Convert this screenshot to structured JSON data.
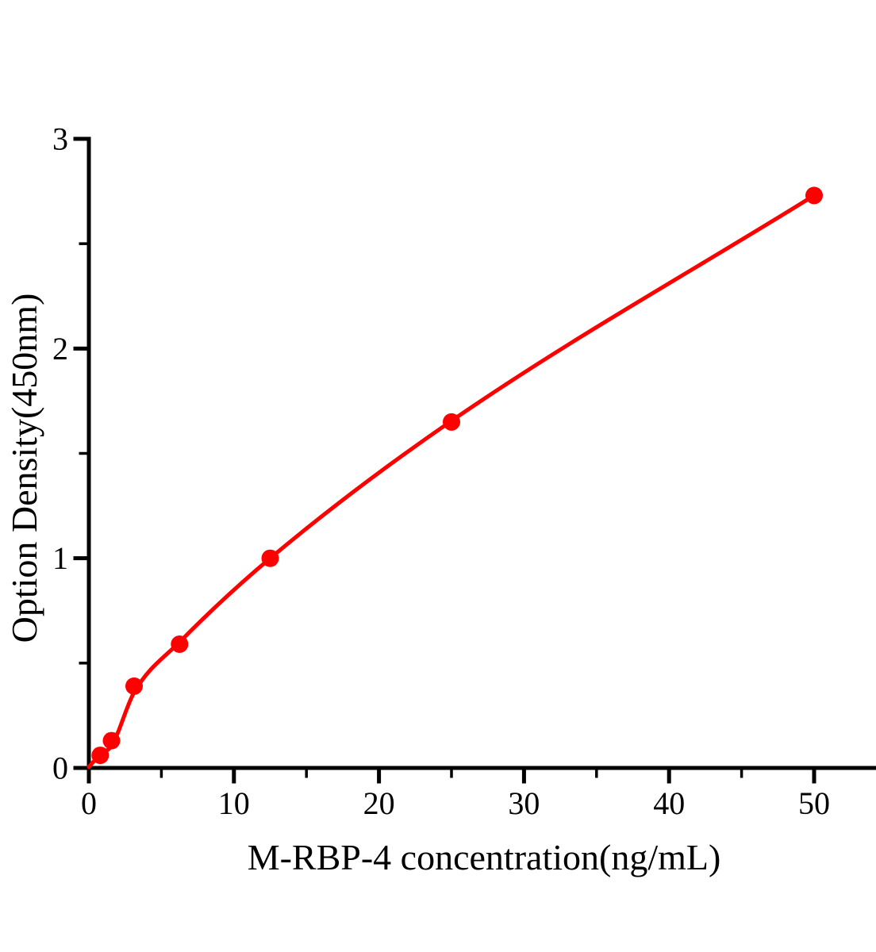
{
  "chart_data": {
    "type": "scatter",
    "title": "",
    "xlabel": "M-RBP-4 concentration(ng/mL)",
    "ylabel": "Option Density(450nm)",
    "x": [
      0.78,
      1.56,
      3.12,
      6.25,
      12.5,
      25,
      50
    ],
    "y": [
      0.06,
      0.13,
      0.39,
      0.59,
      1.0,
      1.65,
      2.73
    ],
    "fit_curve_anchors": [
      [
        0,
        0.005
      ],
      [
        0.78,
        0.065
      ],
      [
        1.56,
        0.105
      ],
      [
        3.12,
        0.36
      ],
      [
        6.25,
        0.6
      ],
      [
        12.5,
        1.0
      ],
      [
        25,
        1.655
      ],
      [
        50,
        2.73
      ]
    ],
    "xlim": [
      0,
      54.2
    ],
    "ylim": [
      0,
      3
    ],
    "x_major_ticks": [
      0,
      10,
      20,
      30,
      40,
      50
    ],
    "x_minor_ticks": [
      5,
      15,
      25,
      35,
      45
    ],
    "x_tick_labels": [
      "0",
      "10",
      "20",
      "30",
      "40",
      "50"
    ],
    "y_major_ticks": [
      0,
      1,
      2,
      3
    ],
    "y_minor_ticks": [
      0.5,
      1.5,
      2.5
    ],
    "y_tick_labels": [
      "0",
      "1",
      "2",
      "3"
    ],
    "grid": false,
    "legend_position": "none",
    "colors": {
      "curve": "#fe0000",
      "marker": "#fe0000",
      "axis": "#000000",
      "text": "#000000",
      "background": "#ffffff"
    }
  }
}
